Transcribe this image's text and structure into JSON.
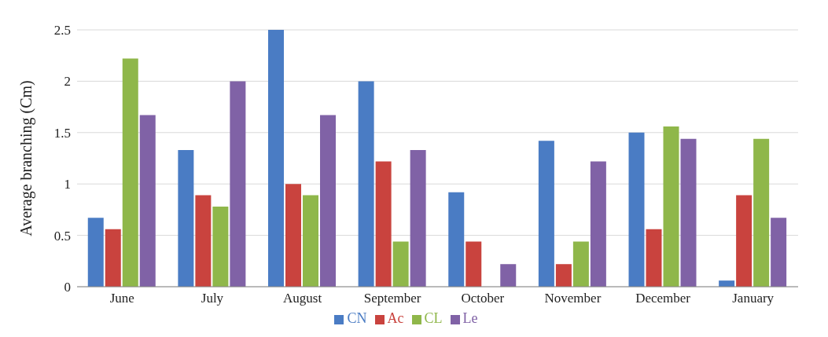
{
  "chart_data": {
    "type": "bar",
    "ylabel": "Average branching  (Cm)",
    "categories": [
      "June",
      "July",
      "August",
      "September",
      "October",
      "November",
      "December",
      "January"
    ],
    "series": [
      {
        "name": "CN",
        "color": "#4a7cc4",
        "values": [
          0.67,
          1.33,
          2.5,
          2.0,
          0.92,
          1.42,
          1.5,
          0.06
        ]
      },
      {
        "name": "Ac",
        "color": "#c9433e",
        "values": [
          0.56,
          0.89,
          1.0,
          1.22,
          0.44,
          0.22,
          0.56,
          0.89
        ]
      },
      {
        "name": "CL",
        "color": "#8fb74a",
        "values": [
          2.22,
          0.78,
          0.89,
          0.44,
          0,
          0.44,
          1.56,
          1.44
        ]
      },
      {
        "name": "Le",
        "color": "#8062a6",
        "values": [
          1.67,
          2.0,
          1.67,
          1.33,
          0.22,
          1.22,
          1.44,
          0.67
        ]
      }
    ],
    "ylim": [
      0,
      2.5
    ],
    "yticks": [
      0,
      0.5,
      1,
      1.5,
      2,
      2.5
    ],
    "grid": "y",
    "legend": "bottom"
  }
}
